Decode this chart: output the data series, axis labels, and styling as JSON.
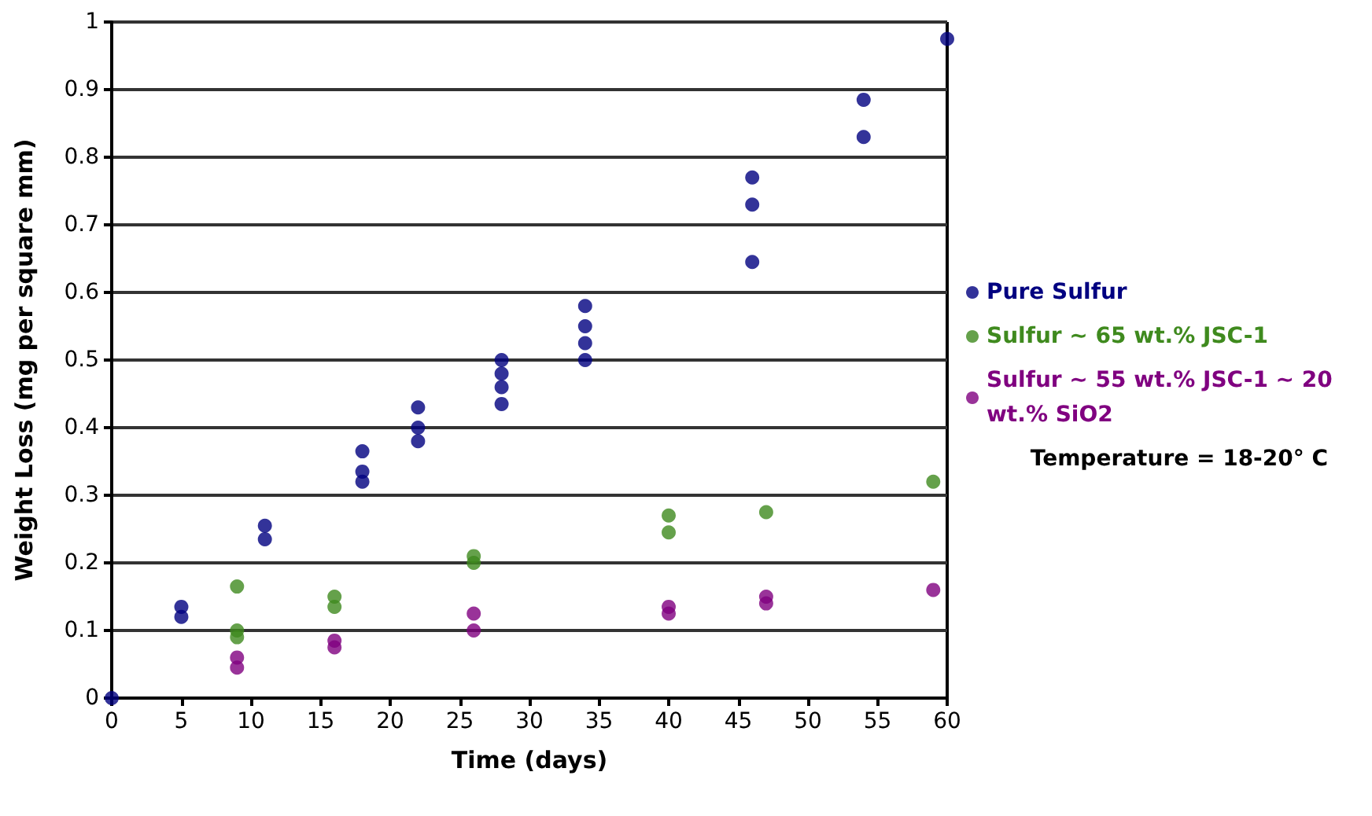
{
  "chart_data": {
    "type": "scatter",
    "xlabel": "Time (days)",
    "ylabel": "Weight Loss (mg per square mm)",
    "xlim": [
      0,
      60
    ],
    "xticks": [
      0,
      5,
      10,
      15,
      20,
      25,
      30,
      35,
      40,
      45,
      50,
      55,
      60
    ],
    "ylim": [
      0,
      1
    ],
    "yticks": [
      0,
      0.1,
      0.2,
      0.3,
      0.4,
      0.5,
      0.6,
      0.7,
      0.8,
      0.9,
      1
    ],
    "grid": "y",
    "legend": "right",
    "marker": "circle",
    "annotations": [
      "Temperature = 18-20° C"
    ],
    "series": [
      {
        "name": "Pure Sulfur",
        "color": "#000080",
        "x": [
          0,
          5,
          5,
          11,
          11,
          18,
          18,
          18,
          22,
          22,
          22,
          28,
          28,
          28,
          28,
          34,
          34,
          34,
          34,
          46,
          46,
          46,
          54,
          54,
          60
        ],
        "values": [
          0,
          0.135,
          0.12,
          0.255,
          0.235,
          0.365,
          0.335,
          0.32,
          0.43,
          0.4,
          0.38,
          0.5,
          0.48,
          0.46,
          0.435,
          0.58,
          0.55,
          0.525,
          0.5,
          0.77,
          0.73,
          0.645,
          0.885,
          0.83,
          0.975
        ]
      },
      {
        "name": "Sulfur ~ 65 wt.% JSC-1",
        "color": "#3f8a1e",
        "x": [
          9,
          9,
          9,
          16,
          16,
          26,
          26,
          40,
          40,
          47,
          59
        ],
        "values": [
          0.165,
          0.1,
          0.09,
          0.15,
          0.135,
          0.21,
          0.2,
          0.27,
          0.245,
          0.275,
          0.32
        ]
      },
      {
        "name": "Sulfur ~ 55 wt.% JSC-1 ~ 20 wt.% SiO2",
        "color": "#800080",
        "x": [
          9,
          9,
          16,
          16,
          26,
          26,
          40,
          40,
          47,
          47,
          59
        ],
        "values": [
          0.06,
          0.045,
          0.085,
          0.075,
          0.125,
          0.1,
          0.135,
          0.125,
          0.15,
          0.14,
          0.16
        ]
      }
    ]
  }
}
